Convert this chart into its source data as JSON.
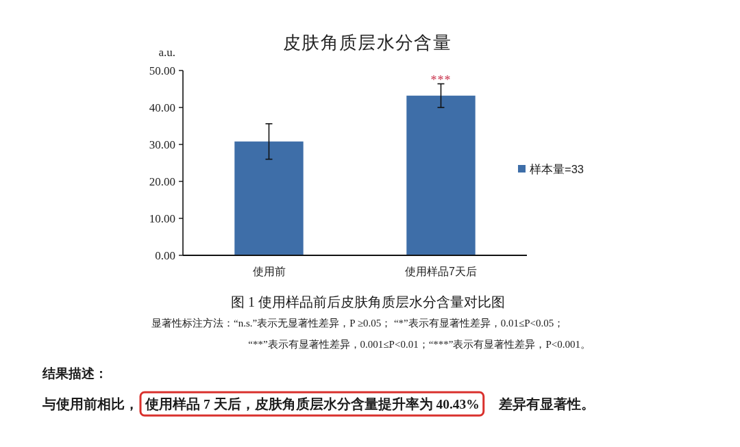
{
  "chart_data": {
    "type": "bar",
    "title": "皮肤角质层水分含量",
    "ylabel": "a.u.",
    "categories": [
      "使用前",
      "使用样品7天后"
    ],
    "series": [
      {
        "name": "样本量=33",
        "color": "#3e6ea8",
        "values": [
          30.8,
          43.2
        ],
        "errors": [
          4.8,
          3.2
        ]
      }
    ],
    "ylim": [
      0,
      50
    ],
    "yticks": [
      {
        "value": 0,
        "label": "0.00"
      },
      {
        "value": 10,
        "label": "10.00"
      },
      {
        "value": 20,
        "label": "20.00"
      },
      {
        "value": 30,
        "label": "30.00"
      },
      {
        "value": 40,
        "label": "40.00"
      },
      {
        "value": 50,
        "label": "50.00"
      }
    ],
    "legend": "right",
    "annotations": [
      {
        "text": "***",
        "x": "使用样品7天后",
        "y": 46.4
      },
      "图 1  使用样品前后皮肤角质层水分含量对比图",
      "显著性标注方法：“n.s.”表示无显著性差异，P ≥0.05；  “*”表示有显著性差异，0.01≤P<0.05；",
      "“**”表示有显著性差异，0.001≤P<0.01；“***”表示有显著性差异，P<0.001。",
      "结果描述：",
      "与使用前相比，",
      "使用样品 7 天后，皮肤角质层水分含量提升率为 40.43%",
      "差异有显著性。"
    ]
  }
}
